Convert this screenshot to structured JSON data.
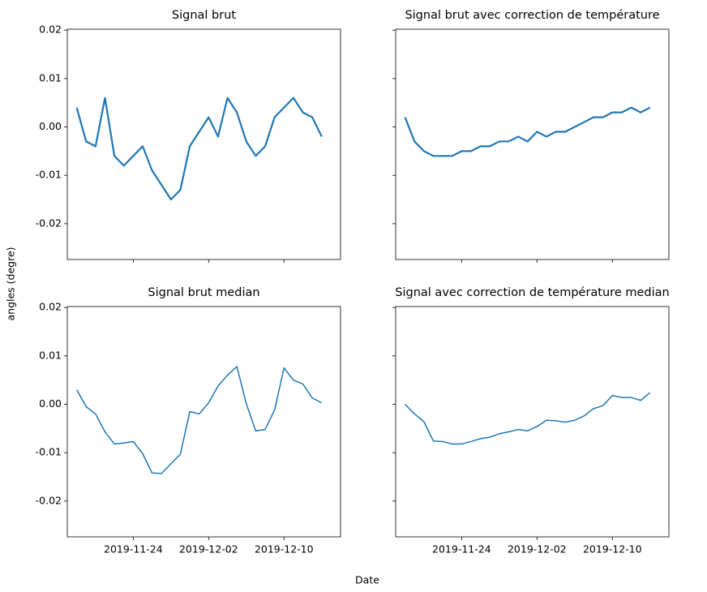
{
  "figure": {
    "xlabel": "Date",
    "ylabel": "angles (degre)"
  },
  "chart_data": [
    {
      "type": "line",
      "title": "Signal brut",
      "x": [
        "2019-11-18",
        "2019-11-19",
        "2019-11-20",
        "2019-11-21",
        "2019-11-22",
        "2019-11-23",
        "2019-11-24",
        "2019-11-25",
        "2019-11-26",
        "2019-11-27",
        "2019-11-28",
        "2019-11-29",
        "2019-11-30",
        "2019-12-01",
        "2019-12-02",
        "2019-12-03",
        "2019-12-04",
        "2019-12-05",
        "2019-12-06",
        "2019-12-07",
        "2019-12-08",
        "2019-12-09",
        "2019-12-10",
        "2019-12-11",
        "2019-12-12",
        "2019-12-13",
        "2019-12-14"
      ],
      "series": [
        {
          "color": "#1f77b4",
          "values": [
            0.004,
            -0.003,
            -0.004,
            0.006,
            -0.006,
            -0.008,
            -0.006,
            -0.004,
            -0.009,
            -0.012,
            -0.015,
            -0.013,
            -0.004,
            -0.001,
            0.002,
            -0.002,
            0.006,
            0.003,
            -0.003,
            -0.006,
            -0.004,
            0.002,
            0.004,
            0.006,
            0.003,
            0.002,
            -0.002
          ]
        }
      ],
      "xlim": [
        "2019-11-17",
        "2019-12-16"
      ],
      "xticks": [
        "2019-11-24",
        "2019-12-02",
        "2019-12-10"
      ],
      "ylim": [
        -0.0274,
        0.0202
      ],
      "yticks": [
        -0.02,
        -0.01,
        {
          "value": 0,
          "label": "0.00"
        },
        0.01,
        0.02
      ],
      "show_xticklabels": false,
      "show_yticklabels": true,
      "line_width": 2.2
    },
    {
      "type": "line",
      "title": "Signal brut avec correction de température",
      "x": [
        "2019-11-18",
        "2019-11-19",
        "2019-11-20",
        "2019-11-21",
        "2019-11-22",
        "2019-11-23",
        "2019-11-24",
        "2019-11-25",
        "2019-11-26",
        "2019-11-27",
        "2019-11-28",
        "2019-11-29",
        "2019-11-30",
        "2019-12-01",
        "2019-12-02",
        "2019-12-03",
        "2019-12-04",
        "2019-12-05",
        "2019-12-06",
        "2019-12-07",
        "2019-12-08",
        "2019-12-09",
        "2019-12-10",
        "2019-12-11",
        "2019-12-12",
        "2019-12-13",
        "2019-12-14"
      ],
      "series": [
        {
          "color": "#1f77b4",
          "values": [
            0.002,
            -0.003,
            -0.005,
            -0.006,
            -0.006,
            -0.006,
            -0.005,
            -0.005,
            -0.004,
            -0.004,
            -0.003,
            -0.003,
            -0.002,
            -0.003,
            -0.001,
            -0.002,
            -0.001,
            -0.001,
            0.0,
            0.001,
            0.002,
            0.002,
            0.003,
            0.003,
            0.004,
            0.003,
            0.004
          ]
        }
      ],
      "xlim": [
        "2019-11-17",
        "2019-12-16"
      ],
      "xticks": [
        "2019-11-24",
        "2019-12-02",
        "2019-12-10"
      ],
      "ylim": [
        -0.0274,
        0.0202
      ],
      "yticks": [
        -0.02,
        -0.01,
        0,
        0.01,
        0.02
      ],
      "show_xticklabels": false,
      "show_yticklabels": false,
      "line_width": 2.2
    },
    {
      "type": "line",
      "title": "Signal brut median",
      "x": [
        "2019-11-18",
        "2019-11-19",
        "2019-11-20",
        "2019-11-21",
        "2019-11-22",
        "2019-11-23",
        "2019-11-24",
        "2019-11-25",
        "2019-11-26",
        "2019-11-27",
        "2019-11-28",
        "2019-11-29",
        "2019-11-30",
        "2019-12-01",
        "2019-12-02",
        "2019-12-03",
        "2019-12-04",
        "2019-12-05",
        "2019-12-06",
        "2019-12-07",
        "2019-12-08",
        "2019-12-09",
        "2019-12-10",
        "2019-12-11",
        "2019-12-12",
        "2019-12-13",
        "2019-12-14"
      ],
      "series": [
        {
          "color": "#1f77b4",
          "values": [
            0.003,
            -0.0005,
            -0.002,
            -0.0057,
            -0.0082,
            -0.008,
            -0.0077,
            -0.0102,
            -0.0142,
            -0.0143,
            -0.0123,
            -0.0103,
            -0.0015,
            -0.002,
            0.0003,
            0.0038,
            0.006,
            0.0078,
            0.0001,
            -0.0055,
            -0.0052,
            -0.0012,
            0.0075,
            0.005,
            0.0042,
            0.0013,
            0.0003
          ]
        }
      ],
      "xlim": [
        "2019-11-17",
        "2019-12-16"
      ],
      "xticks": [
        "2019-11-24",
        "2019-12-02",
        "2019-12-10"
      ],
      "ylim": [
        -0.0274,
        0.0202
      ],
      "yticks": [
        -0.02,
        -0.01,
        {
          "value": 0,
          "label": "0.00"
        },
        0.01,
        0.02
      ],
      "show_xticklabels": true,
      "show_yticklabels": true,
      "line_width": 1.5
    },
    {
      "type": "line",
      "title": "Signal avec correction de température median",
      "x": [
        "2019-11-18",
        "2019-11-19",
        "2019-11-20",
        "2019-11-21",
        "2019-11-22",
        "2019-11-23",
        "2019-11-24",
        "2019-11-25",
        "2019-11-26",
        "2019-11-27",
        "2019-11-28",
        "2019-11-29",
        "2019-11-30",
        "2019-12-01",
        "2019-12-02",
        "2019-12-03",
        "2019-12-04",
        "2019-12-05",
        "2019-12-06",
        "2019-12-07",
        "2019-12-08",
        "2019-12-09",
        "2019-12-10",
        "2019-12-11",
        "2019-12-12",
        "2019-12-13",
        "2019-12-14"
      ],
      "series": [
        {
          "color": "#1f77b4",
          "values": [
            0.0,
            -0.002,
            -0.0036,
            -0.0076,
            -0.0077,
            -0.0082,
            -0.0082,
            -0.0077,
            -0.0071,
            -0.0068,
            -0.0061,
            -0.0057,
            -0.0052,
            -0.0055,
            -0.0046,
            -0.0033,
            -0.0034,
            -0.0037,
            -0.0033,
            -0.0024,
            -0.0009,
            -0.0003,
            0.0018,
            0.0014,
            0.0014,
            0.0008,
            0.0024
          ]
        }
      ],
      "xlim": [
        "2019-11-17",
        "2019-12-16"
      ],
      "xticks": [
        "2019-11-24",
        "2019-12-02",
        "2019-12-10"
      ],
      "ylim": [
        -0.0274,
        0.0202
      ],
      "yticks": [
        -0.02,
        -0.01,
        0,
        0.01,
        0.02
      ],
      "show_xticklabels": true,
      "show_yticklabels": false,
      "line_width": 1.5
    }
  ]
}
